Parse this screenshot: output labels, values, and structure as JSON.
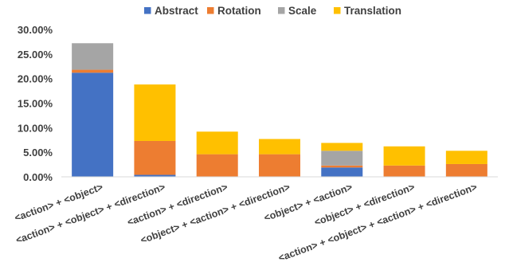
{
  "chart_data": {
    "type": "bar",
    "stacked": true,
    "categories": [
      "<action> + <object>",
      "<action> + <object> + <direction>",
      "<action> + <direction>",
      "<object> + <action> + <direction>",
      "<object> + <action>",
      "<object> + <direction>",
      "<action> + <object> + <action> + <direction>"
    ],
    "series": [
      {
        "name": "Abstract",
        "color": "#4472C4",
        "values": [
          21.2,
          0.4,
          0,
          0,
          1.9,
          0,
          0
        ]
      },
      {
        "name": "Rotation",
        "color": "#ED7D31",
        "values": [
          0.6,
          6.9,
          4.6,
          4.6,
          0.4,
          2.3,
          2.6
        ]
      },
      {
        "name": "Scale",
        "color": "#A5A5A5",
        "values": [
          5.4,
          0,
          0,
          0,
          3.0,
          0,
          0
        ]
      },
      {
        "name": "Translation",
        "color": "#FFC000",
        "values": [
          0,
          11.5,
          4.6,
          3.1,
          1.6,
          3.9,
          2.7
        ]
      }
    ],
    "ylim": [
      0,
      30
    ],
    "yticks": [
      "0.00%",
      "5.00%",
      "10.00%",
      "15.00%",
      "20.00%",
      "25.00%",
      "30.00%"
    ],
    "grid": false,
    "legend": "top"
  }
}
